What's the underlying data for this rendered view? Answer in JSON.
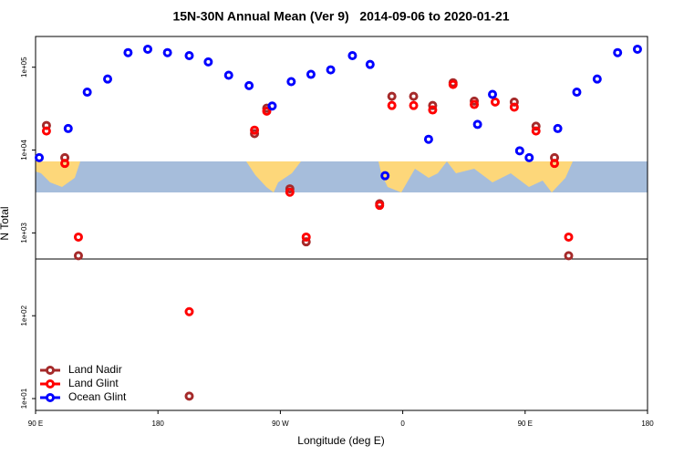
{
  "chart_data": {
    "type": "scatter",
    "title": "15N-30N Annual Mean (Ver 9)   2014-09-06 to 2020-01-21",
    "x_label": "Longitude (deg E)",
    "y_label": "N Total",
    "log_y": true,
    "legend": "bottom-left",
    "xlim": [
      90,
      540
    ],
    "ylim": [
      7.2,
      235000
    ],
    "xticks": [
      {
        "value": 90,
        "label": "90 E"
      },
      180,
      {
        "value": 270,
        "label": "90 W"
      },
      {
        "value": 360,
        "label": "0"
      },
      {
        "value": 450,
        "label": "90 E"
      },
      {
        "value": 540,
        "label": "180"
      }
    ],
    "yticks": [
      {
        "value": 10,
        "label": "1e+01"
      },
      {
        "value": 100,
        "label": "1e+02"
      },
      {
        "value": 1000,
        "label": "1e+03"
      },
      {
        "value": 10000,
        "label": "1e+04"
      },
      {
        "value": 100000,
        "label": "1e+05"
      }
    ],
    "series": [
      {
        "name": "Land Nadir",
        "color": "#a52a2a",
        "x": [
          98,
          111.5,
          121.5,
          203,
          251,
          260,
          277,
          289,
          343,
          352,
          368,
          382,
          397,
          412.6,
          442,
          458,
          471.6,
          482
        ],
        "values": [
          19800,
          8100,
          530,
          10.7,
          15800,
          32000,
          3400,
          780,
          2250,
          44500,
          44500,
          34500,
          65000,
          39000,
          38000,
          19400,
          8100,
          530
        ]
      },
      {
        "name": "Land Glint",
        "color": "#ff0000",
        "x": [
          98,
          111.5,
          121.5,
          203,
          251,
          260,
          277,
          289,
          343,
          352,
          368,
          382,
          397,
          412.6,
          428,
          442,
          458,
          471.6,
          482
        ],
        "values": [
          17000,
          6900,
          890,
          112,
          17400,
          29500,
          3100,
          890,
          2150,
          34500,
          34500,
          30500,
          62000,
          35500,
          38000,
          33000,
          17000,
          6900,
          890
        ]
      },
      {
        "name": "Ocean Glint",
        "color": "#0000ff",
        "x": [
          92.7,
          114,
          128,
          143,
          158,
          172.5,
          187,
          203,
          217,
          232,
          247,
          264,
          278,
          292.5,
          307,
          323,
          336,
          347,
          379,
          415,
          426,
          446,
          453,
          474,
          488,
          503,
          518,
          532.6
        ],
        "values": [
          8100,
          18200,
          50000,
          72000,
          150000,
          165000,
          150000,
          138000,
          116000,
          80000,
          60000,
          34000,
          67000,
          82000,
          93000,
          138000,
          108000,
          4900,
          13500,
          20400,
          47000,
          9800,
          8100,
          18200,
          50000,
          72000,
          150000,
          165000
        ]
      }
    ]
  }
}
